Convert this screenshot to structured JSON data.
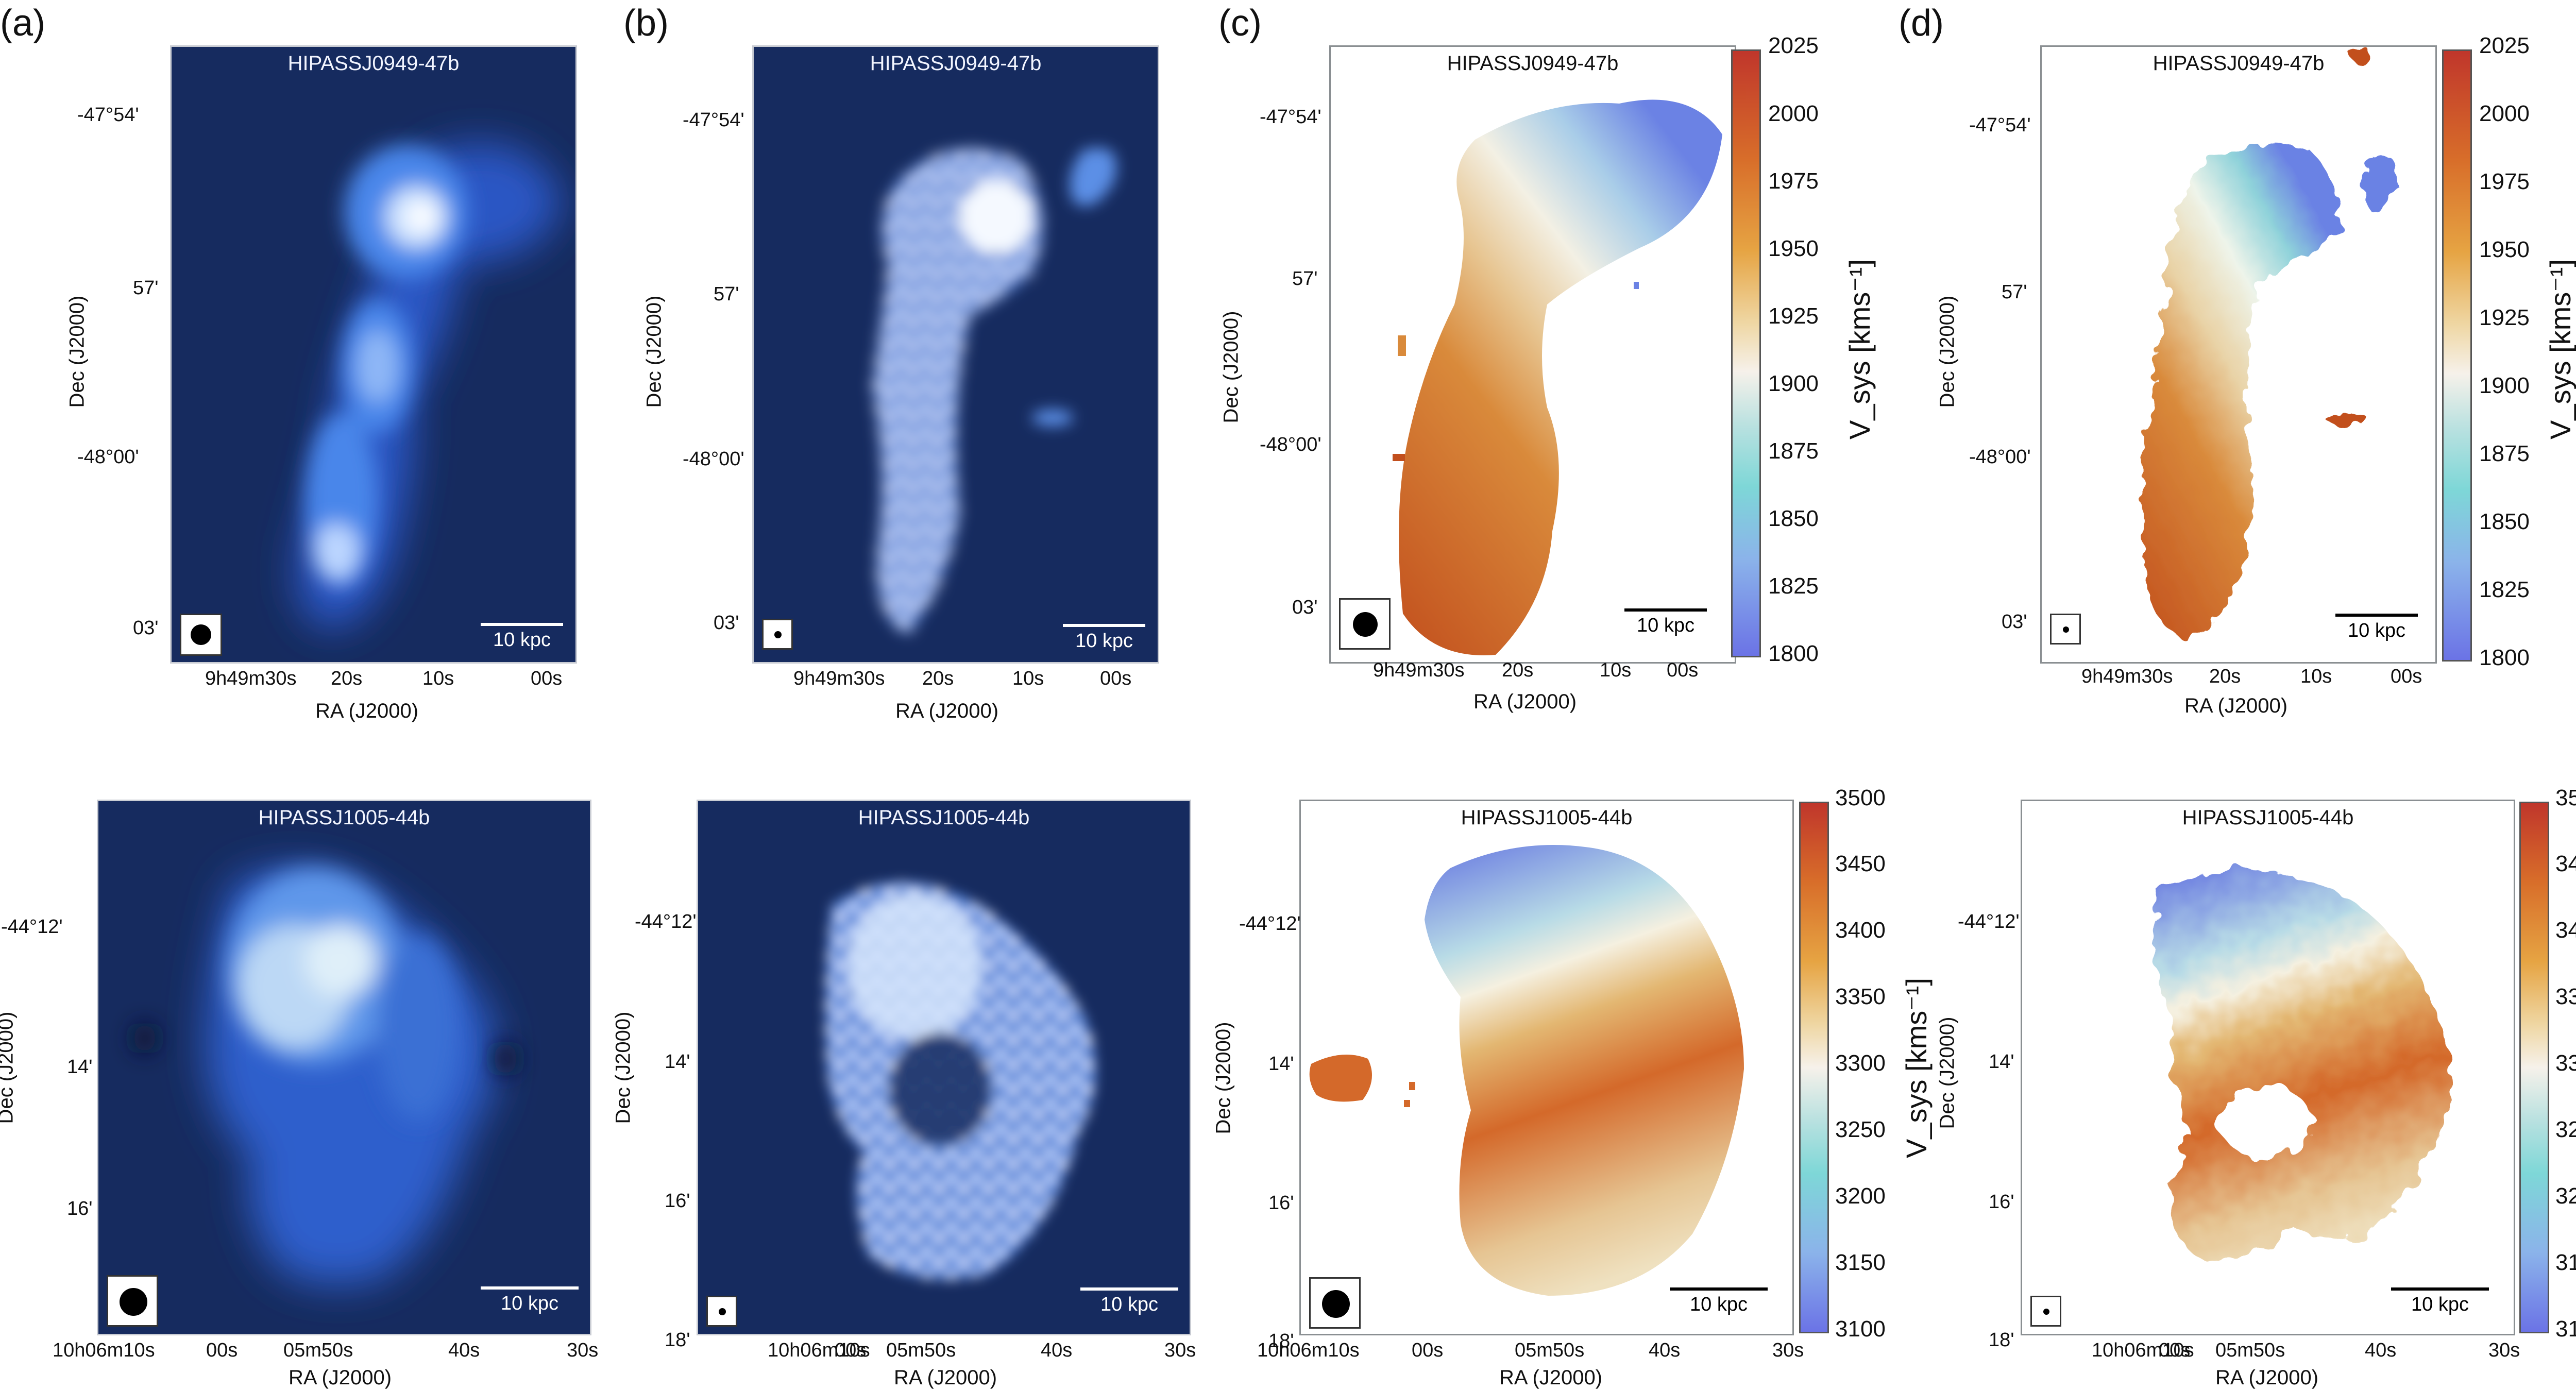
{
  "figure": {
    "panel_labels": [
      "(a)",
      "(b)",
      "(c)",
      "(d)"
    ],
    "galaxy_top": "HIPASSJ0949-47b",
    "galaxy_bottom": "HIPASSJ1005-44b",
    "scale_label": "10 kpc",
    "ra_label": "RA (J2000)",
    "dec_label": "Dec (J2000)",
    "vsys_label": "V_sys [kms⁻¹]",
    "top": {
      "dec_ticks": [
        "-47°54'",
        "57'",
        "-48°00'",
        "03'"
      ],
      "ra_ticks": [
        "9h49m30s",
        "20s",
        "10s",
        "00s"
      ],
      "cbar_ticks": [
        "2025",
        "2000",
        "1975",
        "1950",
        "1925",
        "1900",
        "1875",
        "1850",
        "1825",
        "1800"
      ],
      "vrange": [
        1800,
        2025
      ]
    },
    "bottom": {
      "dec_ticks": [
        "-44°12'",
        "14'",
        "16'",
        "18'"
      ],
      "ra_ticks": [
        "10h06m10s",
        "00s",
        "05m50s",
        "40s",
        "30s"
      ],
      "cbar_ticks": [
        "3500",
        "3450",
        "3400",
        "3350",
        "3300",
        "3250",
        "3200",
        "3150",
        "3100"
      ],
      "vrange": [
        3100,
        3500
      ]
    }
  },
  "colors": {
    "map_background": "#162b5f",
    "cmap_low": "#6b73e6",
    "cmap_mid": "#f5f2e8",
    "cmap_high": "#c0362b"
  }
}
